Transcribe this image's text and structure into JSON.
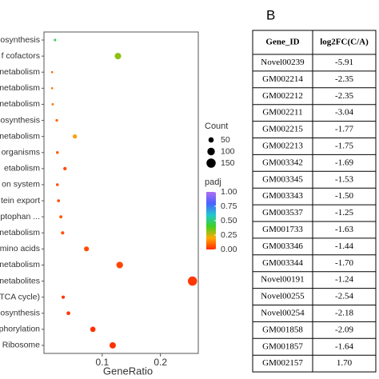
{
  "chart_data": {
    "type": "dot",
    "x_label": "GeneRatio",
    "categories": [
      "bosynthesis",
      "f cofactors",
      "netabolism",
      "netabolism",
      "netabolism",
      "osynthesis",
      "netabolism",
      "organisms",
      "etabolism",
      "on system",
      "tein export",
      "ptophan ...",
      "netabolism",
      "mino acids",
      "netabolism",
      "netabolites",
      "TCA cycle)",
      "osynthesis",
      "phorylation",
      "Ribosome"
    ],
    "values": [
      0.019,
      0.127,
      0.014,
      0.014,
      0.015,
      0.022,
      0.053,
      0.023,
      0.036,
      0.023,
      0.025,
      0.029,
      0.032,
      0.073,
      0.13,
      0.255,
      0.033,
      0.042,
      0.084,
      0.118
    ],
    "count": [
      11,
      75,
      8,
      8,
      9,
      13,
      31,
      14,
      21,
      14,
      15,
      17,
      19,
      43,
      77,
      150,
      19,
      25,
      50,
      70
    ],
    "padj": [
      0.45,
      0.32,
      0.1,
      0.12,
      0.12,
      0.1,
      0.18,
      0.08,
      0.05,
      0.06,
      0.05,
      0.07,
      0.06,
      0.05,
      0.04,
      0.02,
      0.02,
      0.02,
      0.01,
      0.01
    ],
    "xlim": [
      0,
      0.265
    ],
    "xticks": [
      0.1,
      0.2
    ],
    "size_title": "Count",
    "size_legend": [
      50,
      100,
      150
    ],
    "color_title": "padj",
    "clim": [
      0,
      1
    ],
    "cticks": [
      {
        "value": 1,
        "label": "1.00"
      },
      {
        "value": 0.75,
        "label": "0.75"
      },
      {
        "value": 0.5,
        "label": "0.50"
      },
      {
        "value": 0.25,
        "label": "0.25"
      },
      {
        "value": 0,
        "label": "0.00"
      }
    ],
    "colorscale": [
      "#ff2a00",
      "#ffaa00",
      "#40d020",
      "#20c8d0",
      "#4a60ff",
      "#b070f0"
    ]
  },
  "table": {
    "panel_label": "B",
    "header": [
      "Gene_ID",
      "log2FC(C/A)"
    ],
    "rows": [
      [
        "Novel00239",
        "-5.91"
      ],
      [
        "GM002214",
        "-2.35"
      ],
      [
        "GM002212",
        "-2.35"
      ],
      [
        "GM002211",
        "-3.04"
      ],
      [
        "GM002215",
        "-1.77"
      ],
      [
        "GM002213",
        "-1.75"
      ],
      [
        "GM003342",
        "-1.69"
      ],
      [
        "GM003345",
        "-1.53"
      ],
      [
        "GM003343",
        "-1.50"
      ],
      [
        "GM003537",
        "-1.25"
      ],
      [
        "GM001733",
        "-1.63"
      ],
      [
        "GM003346",
        "-1.44"
      ],
      [
        "GM003344",
        "-1.70"
      ],
      [
        "Novel00191",
        "-1.24"
      ],
      [
        "Novel00255",
        "-2.54"
      ],
      [
        "Novel00254",
        "-2.18"
      ],
      [
        "GM001858",
        "-2.09"
      ],
      [
        "GM001857",
        "-1.64"
      ],
      [
        "GM002157",
        "1.70"
      ]
    ]
  }
}
